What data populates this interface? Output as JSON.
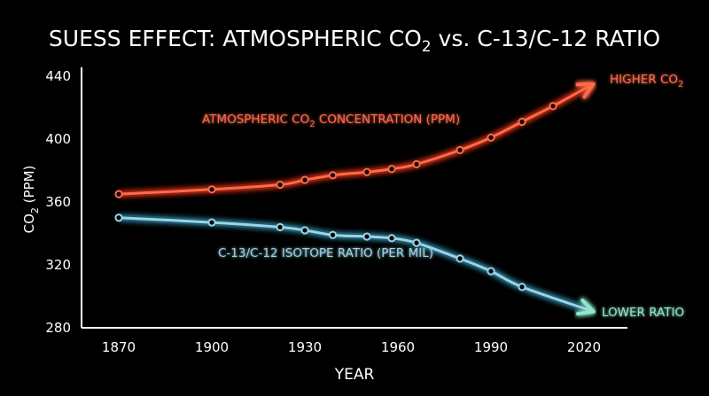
{
  "title": {
    "prefix": "SUESS EFFECT: ATMOSPHERIC CO",
    "sub": "2",
    "suffix": " vs. C-13/C-12 RATIO"
  },
  "colors": {
    "background": "#000000",
    "co2": "#ff6a4a",
    "co2_glow": "#ff3a1a",
    "ratio": "#9ad4e6",
    "ratio_glow": "#3aa6c8",
    "ratio_arrow": "#8fe6c8",
    "axis": "#ffffff"
  },
  "chart_data": {
    "type": "line",
    "title": "SUESS EFFECT: ATMOSPHERIC CO2 vs. C-13/C-12 RATIO",
    "xlabel": "YEAR",
    "ylabel": {
      "prefix": "CO",
      "sub": "2",
      "suffix": " (PPM)"
    },
    "xlim": [
      1855,
      2025
    ],
    "ylim": [
      280,
      440
    ],
    "x_ticks": [
      1870,
      1900,
      1930,
      1960,
      1990,
      2020
    ],
    "y_ticks": [
      280,
      320,
      360,
      400,
      440
    ],
    "grid": false,
    "series": [
      {
        "name": "ATMOSPHERIC CO2 CONCENTRATION (PPM)",
        "label": {
          "prefix": "ATMOSPHERIC CO",
          "sub": "2",
          "suffix": " CONCENTRATION (PPM)"
        },
        "end_label": {
          "prefix": "HIGHER CO",
          "sub": "2"
        },
        "x": [
          1870,
          1900,
          1922,
          1930,
          1939,
          1950,
          1958,
          1966,
          1980,
          1990,
          2000,
          2010
        ],
        "values": [
          365,
          368,
          371,
          374,
          377,
          379,
          381,
          384,
          393,
          401,
          411,
          421
        ],
        "arrow_to": [
          2022,
          434
        ]
      },
      {
        "name": "C-13/C-12 ISOTOPE RATIO (PER MIL)",
        "label": {
          "prefix": "C-13/C-12 ISOTOPE RATIO (PER MIL)",
          "sub": "",
          "suffix": ""
        },
        "end_label": {
          "prefix": "LOWER RATIO",
          "sub": ""
        },
        "x": [
          1870,
          1900,
          1922,
          1930,
          1939,
          1950,
          1958,
          1966,
          1980,
          1990,
          2000
        ],
        "values": [
          350,
          347,
          344,
          342,
          339,
          338,
          337,
          334,
          324,
          316,
          306
        ],
        "arrow_to": [
          2022,
          291
        ]
      }
    ]
  }
}
